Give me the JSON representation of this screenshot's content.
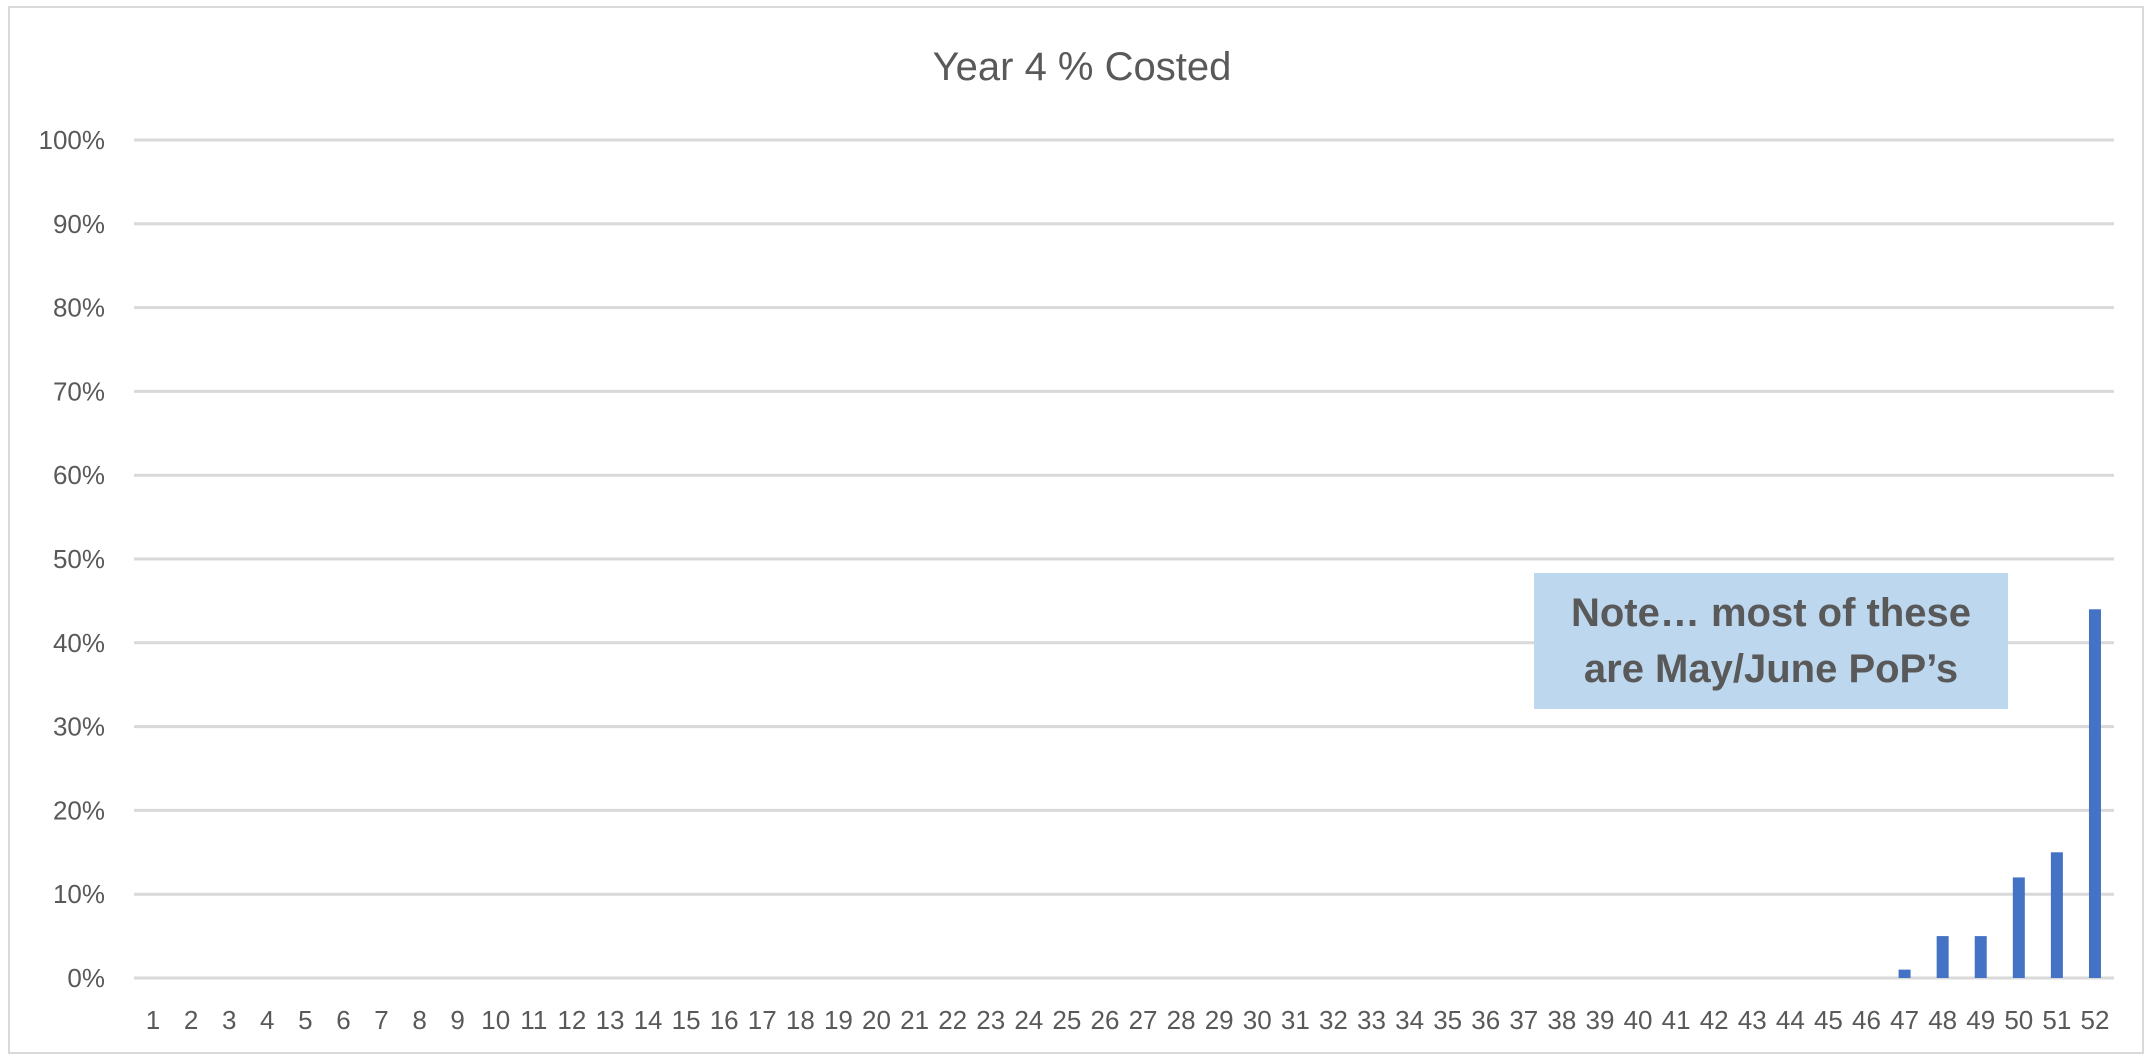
{
  "chart_data": {
    "type": "bar",
    "title": "Year 4 % Costed",
    "xlabel": "",
    "ylabel": "",
    "categories": [
      "1",
      "2",
      "3",
      "4",
      "5",
      "6",
      "7",
      "8",
      "9",
      "10",
      "11",
      "12",
      "13",
      "14",
      "15",
      "16",
      "17",
      "18",
      "19",
      "20",
      "21",
      "22",
      "23",
      "24",
      "25",
      "26",
      "27",
      "28",
      "29",
      "30",
      "31",
      "32",
      "33",
      "34",
      "35",
      "36",
      "37",
      "38",
      "39",
      "40",
      "41",
      "42",
      "43",
      "44",
      "45",
      "46",
      "47",
      "48",
      "49",
      "50",
      "51",
      "52"
    ],
    "values": [
      0,
      0,
      0,
      0,
      0,
      0,
      0,
      0,
      0,
      0,
      0,
      0,
      0,
      0,
      0,
      0,
      0,
      0,
      0,
      0,
      0,
      0,
      0,
      0,
      0,
      0,
      0,
      0,
      0,
      0,
      0,
      0,
      0,
      0,
      0,
      0,
      0,
      0,
      0,
      0,
      0,
      0,
      0,
      0,
      0,
      0,
      1,
      5,
      5,
      12,
      15,
      44
    ],
    "ylim": [
      0,
      100
    ],
    "yticks": [
      "0%",
      "10%",
      "20%",
      "30%",
      "40%",
      "50%",
      "60%",
      "70%",
      "80%",
      "90%",
      "100%"
    ],
    "grid": true,
    "legend": "none",
    "bar_color": "#4472c4",
    "gridline_color": "#d9d9d9",
    "annotation": {
      "text": "Note… most of these are May/June PoP’s",
      "background": "#bdd7ee"
    }
  }
}
